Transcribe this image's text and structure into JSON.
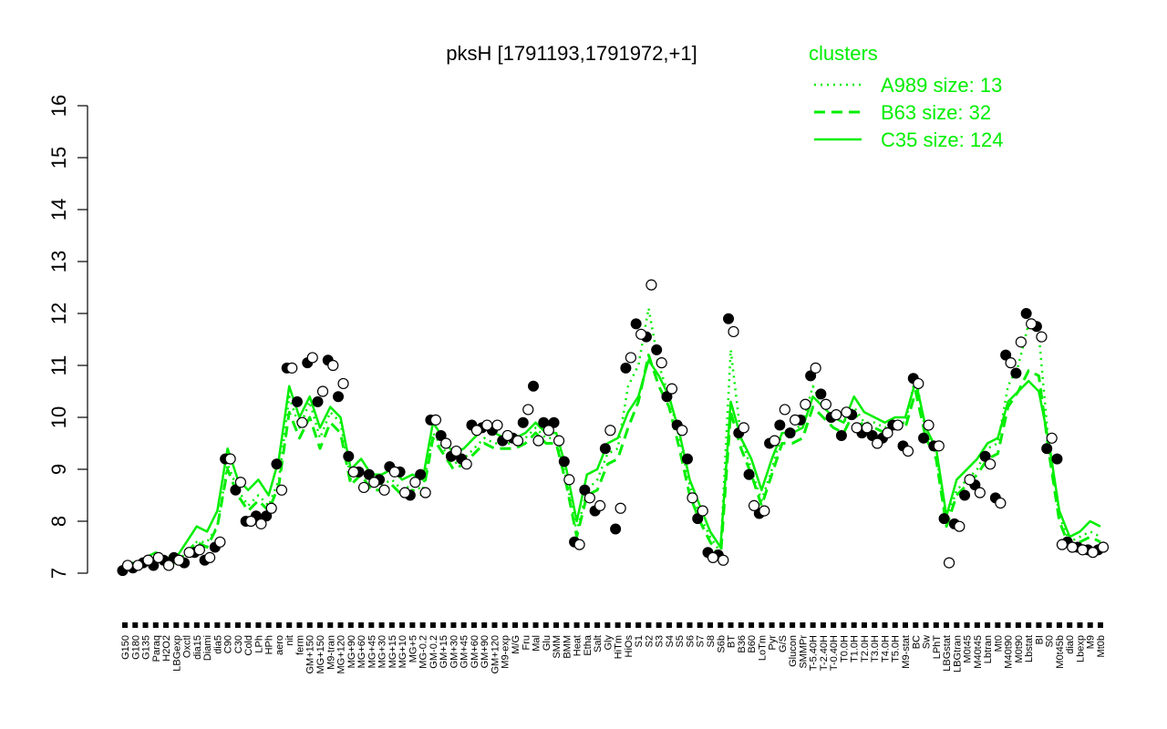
{
  "chart_data": {
    "type": "line",
    "title": "pksH [1791193,1791972,+1]",
    "xlabel": "",
    "ylabel": "",
    "ylim": [
      7,
      16
    ],
    "y_ticks": [
      7,
      8,
      9,
      10,
      11,
      12,
      13,
      14,
      15,
      16
    ],
    "grid": false,
    "legend_position": "top-right",
    "legend": {
      "title": "clusters",
      "color": "#00ee00",
      "entries": [
        {
          "label": "A989 size: 13",
          "style": "dotted"
        },
        {
          "label": "B63 size: 32",
          "style": "dashed"
        },
        {
          "label": "C35 size: 124",
          "style": "solid"
        }
      ]
    },
    "x_tick_labels": [
      "G150",
      "G180",
      "G135",
      "Paraq",
      "H2O2",
      "LBGexp",
      "Oxctl",
      "dia15",
      "Diami",
      "dia5",
      "C90",
      "C30",
      "Cold",
      "LPh",
      "HPh",
      "aero",
      "nit",
      "ferm",
      "GM+150",
      "MG+150",
      "M9-tran",
      "MG+120",
      "MG+90",
      "MG+60",
      "MG+45",
      "MG+30",
      "MG+15",
      "MG+10",
      "MG+5",
      "MG-0.2",
      "GM-0.2",
      "GM+15",
      "GM+30",
      "GM+45",
      "GM+60",
      "GM+90",
      "GM+120",
      "M9-exp",
      "M/G",
      "Fru",
      "Mal",
      "Glu",
      "SMM",
      "BMM",
      "Heat",
      "Etha",
      "Salt",
      "Gly",
      "HiTm",
      "HiOs",
      "S1",
      "S2",
      "S3",
      "S4",
      "S5",
      "S6",
      "S7",
      "S8",
      "S6b",
      "BT",
      "B36",
      "B60",
      "LoTm",
      "Pyr",
      "G/S",
      "Glucon",
      "SMMPr",
      "T-5.40H",
      "T-2.40H",
      "T-0.40H",
      "T0.0H",
      "T1.0H",
      "T2.0H",
      "T3.0H",
      "T4.0H",
      "T5.0H",
      "M9-stat",
      "BC",
      "Sw",
      "LPhT",
      "LBGstat",
      "LBGtran",
      "M0t45",
      "M40t45",
      "Lbtran",
      "Mt0",
      "M40t90",
      "M0t90",
      "Lbstat",
      "BI",
      "S0",
      "M0t45b",
      "dia0",
      "Lbexp",
      "M9",
      "Mt0b"
    ],
    "series": [
      {
        "style": "solid",
        "values": [
          7.2,
          7.2,
          7.3,
          7.4,
          7.3,
          7.3,
          7.6,
          7.9,
          7.8,
          8.2,
          9.4,
          8.8,
          8.6,
          8.8,
          8.5,
          9.2,
          10.6,
          10.0,
          10.4,
          9.8,
          10.2,
          10.0,
          9.0,
          9.2,
          8.9,
          8.9,
          9.0,
          8.8,
          8.9,
          8.8,
          9.9,
          9.6,
          9.3,
          9.4,
          9.6,
          9.8,
          9.7,
          9.6,
          9.6,
          9.7,
          9.9,
          9.7,
          9.7,
          9.0,
          8.0,
          8.9,
          9.0,
          9.5,
          9.6,
          10.1,
          10.4,
          11.1,
          10.8,
          10.4,
          9.7,
          8.8,
          8.3,
          7.8,
          7.5,
          10.3,
          9.6,
          9.2,
          8.6,
          9.2,
          9.7,
          9.7,
          9.8,
          10.4,
          10.2,
          10.0,
          9.9,
          10.4,
          10.1,
          10.0,
          9.9,
          10.0,
          10.0,
          10.7,
          9.8,
          9.4,
          8.1,
          8.8,
          9.0,
          9.2,
          9.5,
          9.6,
          10.3,
          10.5,
          10.7,
          10.5,
          9.5,
          8.2,
          7.7,
          7.8,
          8.0,
          7.9
        ]
      },
      {
        "style": "dashed",
        "values": [
          7.1,
          7.1,
          7.2,
          7.3,
          7.2,
          7.2,
          7.4,
          7.6,
          7.5,
          7.9,
          9.0,
          8.5,
          8.2,
          8.4,
          8.2,
          8.7,
          10.1,
          9.6,
          10.0,
          9.4,
          9.9,
          9.7,
          8.7,
          8.9,
          8.6,
          8.6,
          8.7,
          8.5,
          8.6,
          8.5,
          9.6,
          9.3,
          9.0,
          9.1,
          9.3,
          9.5,
          9.4,
          9.4,
          9.4,
          9.5,
          9.7,
          9.5,
          9.5,
          8.7,
          7.7,
          8.5,
          8.6,
          9.1,
          9.2,
          9.8,
          10.3,
          11.2,
          10.6,
          10.2,
          9.4,
          8.5,
          8.0,
          7.6,
          7.3,
          10.1,
          9.4,
          8.9,
          8.3,
          8.9,
          9.5,
          9.5,
          9.6,
          10.2,
          10.0,
          9.8,
          9.7,
          10.1,
          9.8,
          9.8,
          9.7,
          9.8,
          9.8,
          10.5,
          9.6,
          9.2,
          7.9,
          8.5,
          8.7,
          8.9,
          9.2,
          9.3,
          10.2,
          10.5,
          10.9,
          10.8,
          9.3,
          8.0,
          7.5,
          7.6,
          7.7,
          7.6
        ]
      },
      {
        "style": "dotted",
        "values": [
          7.1,
          7.1,
          7.2,
          7.3,
          7.2,
          7.2,
          7.4,
          7.6,
          7.6,
          7.9,
          9.1,
          8.6,
          8.3,
          8.5,
          8.3,
          8.8,
          10.4,
          9.8,
          10.3,
          9.6,
          10.1,
          9.9,
          8.8,
          9.0,
          8.7,
          8.7,
          8.8,
          8.6,
          8.7,
          8.6,
          9.7,
          9.4,
          9.1,
          9.2,
          9.4,
          9.6,
          9.5,
          9.5,
          9.5,
          9.6,
          9.8,
          9.6,
          9.6,
          8.8,
          7.8,
          8.6,
          8.8,
          9.3,
          9.4,
          10.6,
          11.0,
          12.1,
          11.0,
          10.4,
          9.6,
          8.7,
          8.1,
          7.7,
          7.4,
          11.3,
          9.6,
          9.0,
          8.4,
          9.0,
          9.7,
          9.7,
          9.9,
          10.6,
          10.2,
          10.0,
          9.9,
          10.2,
          9.9,
          9.9,
          9.8,
          9.9,
          9.9,
          10.8,
          9.7,
          9.3,
          8.0,
          8.6,
          8.8,
          9.0,
          9.4,
          9.5,
          10.6,
          11.0,
          11.8,
          11.6,
          9.4,
          8.1,
          7.6,
          7.7,
          7.8,
          7.7
        ]
      }
    ],
    "points": {
      "filled": [
        7.05,
        7.1,
        7.2,
        7.15,
        7.25,
        7.3,
        7.2,
        7.4,
        7.25,
        7.5,
        9.2,
        8.6,
        8.0,
        8.1,
        8.1,
        9.1,
        10.95,
        10.3,
        11.05,
        10.3,
        11.1,
        10.4,
        9.25,
        8.95,
        8.9,
        8.8,
        9.05,
        8.95,
        8.5,
        8.9,
        9.95,
        9.65,
        9.25,
        9.2,
        9.85,
        9.8,
        9.75,
        9.55,
        9.6,
        9.9,
        10.6,
        9.9,
        9.9,
        9.15,
        7.6,
        8.6,
        8.2,
        9.4,
        7.85,
        10.95,
        11.8,
        11.55,
        11.3,
        10.4,
        9.85,
        9.2,
        8.05,
        7.4,
        7.35,
        11.9,
        9.7,
        8.9,
        8.15,
        9.5,
        9.85,
        9.7,
        9.95,
        10.8,
        10.45,
        10.0,
        9.65,
        10.05,
        9.7,
        9.65,
        9.6,
        9.85,
        9.45,
        10.75,
        9.6,
        9.45,
        8.05,
        7.95,
        8.5,
        8.7,
        9.25,
        8.45,
        11.2,
        10.85,
        12.0,
        11.75,
        9.4,
        9.2,
        7.6,
        7.5,
        7.45,
        7.45
      ],
      "open": [
        7.15,
        7.15,
        7.25,
        7.3,
        7.15,
        7.25,
        7.4,
        7.45,
        7.3,
        7.6,
        9.2,
        8.75,
        8.0,
        7.95,
        8.25,
        8.6,
        10.95,
        9.9,
        11.15,
        10.5,
        11.0,
        10.65,
        8.95,
        8.65,
        8.75,
        8.6,
        8.95,
        8.55,
        8.75,
        8.55,
        9.95,
        9.5,
        9.35,
        9.1,
        9.75,
        9.85,
        9.85,
        9.65,
        9.55,
        10.15,
        9.55,
        9.75,
        9.55,
        8.8,
        7.55,
        8.45,
        8.3,
        9.75,
        8.25,
        11.15,
        11.6,
        12.55,
        11.05,
        10.55,
        9.75,
        8.45,
        8.2,
        7.3,
        7.25,
        11.65,
        9.8,
        8.3,
        8.2,
        9.55,
        10.15,
        9.95,
        10.25,
        10.95,
        10.25,
        10.05,
        10.1,
        9.8,
        9.8,
        9.5,
        9.7,
        9.85,
        9.35,
        10.65,
        9.85,
        9.45,
        7.2,
        7.9,
        8.8,
        8.55,
        9.1,
        8.35,
        11.05,
        11.45,
        11.8,
        11.55,
        9.6,
        7.55,
        7.5,
        7.45,
        7.4,
        7.5
      ]
    }
  }
}
